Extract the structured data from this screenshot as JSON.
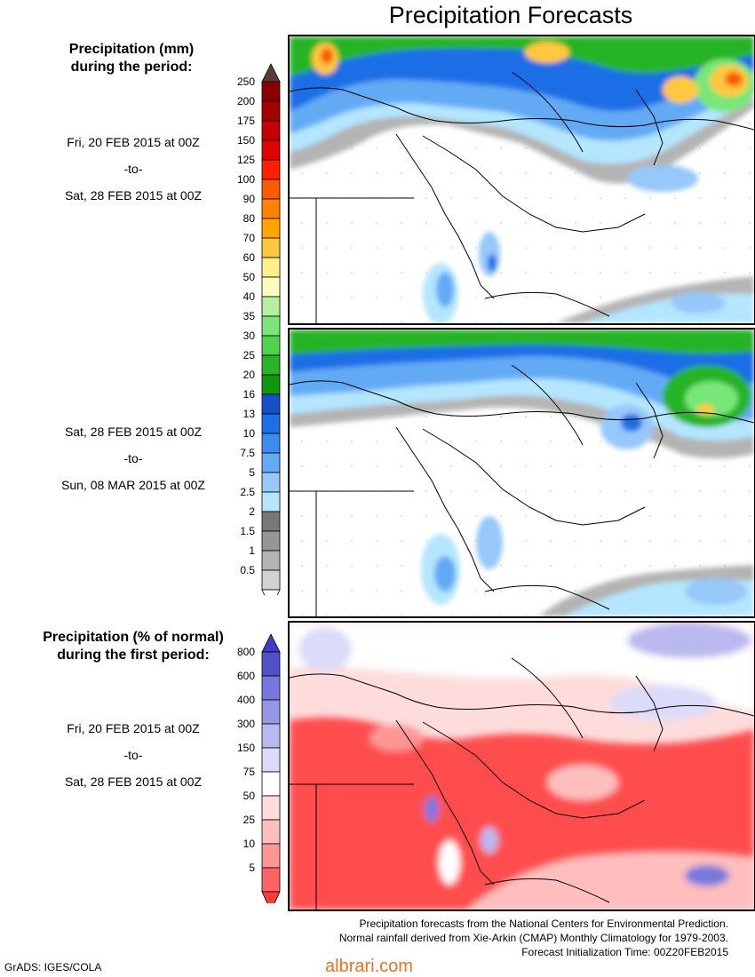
{
  "title": "Precipitation Forecasts",
  "panel1_legend": {
    "heading_line1": "Precipitation (mm)",
    "heading_line2": "during the period:",
    "period": {
      "from": "Fri, 20 FEB 2015 at 00Z",
      "sep": "-to-",
      "to": "Sat, 28 FEB 2015 at 00Z"
    }
  },
  "panel2_legend": {
    "period": {
      "from": "Sat, 28 FEB 2015 at 00Z",
      "sep": "-to-",
      "to": "Sun, 08 MAR 2015 at 00Z"
    }
  },
  "mm_scale": {
    "labels": [
      "250",
      "200",
      "175",
      "150",
      "125",
      "100",
      "90",
      "80",
      "70",
      "60",
      "50",
      "40",
      "35",
      "30",
      "25",
      "20",
      "16",
      "13",
      "10",
      "7.5",
      "5",
      "2.5",
      "2",
      "1.5",
      "1",
      "0.5"
    ],
    "colors": [
      "#8b0000",
      "#a50000",
      "#c40000",
      "#e00000",
      "#ff2000",
      "#ff5a00",
      "#ff8200",
      "#ffa500",
      "#ffc83c",
      "#fff08c",
      "#fffabe",
      "#b4f0a0",
      "#78e678",
      "#50d250",
      "#28b428",
      "#109610",
      "#1450c8",
      "#1e6ee6",
      "#3c8cf0",
      "#64aaf5",
      "#96c8fa",
      "#b4e6ff",
      "#787878",
      "#969696",
      "#b4b4b4",
      "#d2d2d2"
    ],
    "top_color": "#5a3c32"
  },
  "pct_legend": {
    "heading_line1": "Precipitation (% of normal)",
    "heading_line2": "during the first period:",
    "period": {
      "from": "Fri, 20 FEB 2015 at 00Z",
      "sep": "-to-",
      "to": "Sat, 28 FEB 2015 at 00Z"
    }
  },
  "pct_scale": {
    "labels": [
      "800",
      "600",
      "400",
      "300",
      "150",
      "75",
      "50",
      "25",
      "10",
      "5"
    ],
    "colors": [
      "#5050c8",
      "#7878dc",
      "#9696e6",
      "#b9b9f0",
      "#dcdcfa",
      "#ffffff",
      "#ffdcdc",
      "#ffbebe",
      "#ff9696",
      "#ff6464"
    ],
    "top_color": "#3c3cc8",
    "bottom_color": "#ff3c3c"
  },
  "credits": {
    "line1": "Precipitation forecasts from the National Centers for Environmental Prediction.",
    "line2": "Normal rainfall derived from Xie-Arkin (CMAP) Monthly Climatology for 1979-2003.",
    "line3": "Forecast Initialization Time: 00Z20FEB2015"
  },
  "grads": "GrADS: IGES/COLA",
  "watermark": "albrari.com"
}
